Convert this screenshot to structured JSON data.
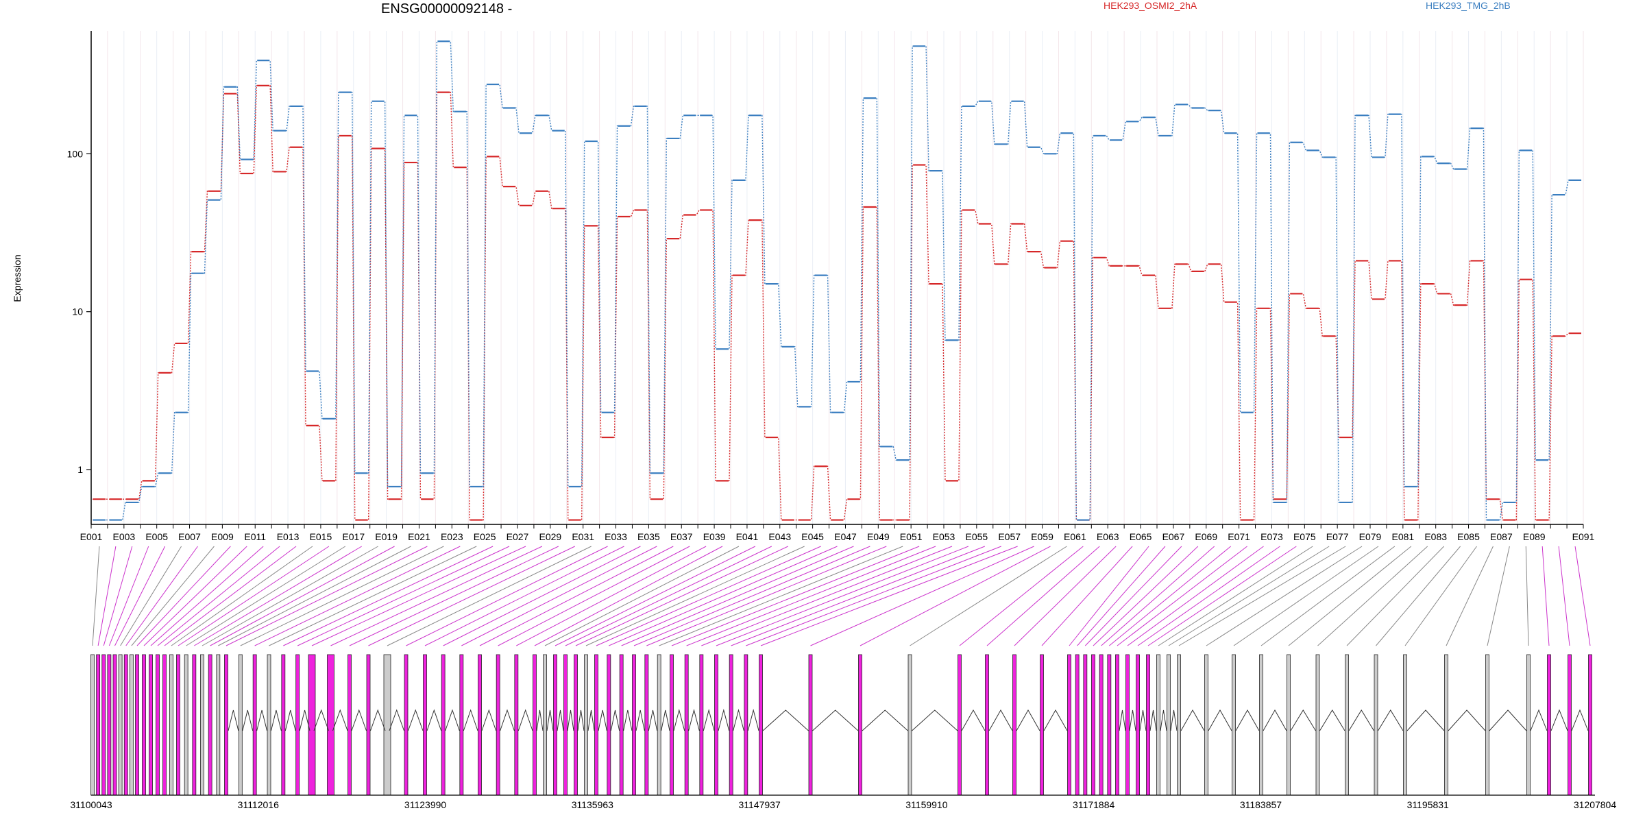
{
  "chart_data": {
    "type": "line",
    "title": "ENSG00000092148 -",
    "xlabel": "",
    "ylabel": "Expression",
    "y_scale": "log",
    "ylim": [
      0.45,
      600
    ],
    "y_ticks": [
      1,
      10,
      100
    ],
    "grid": true,
    "legend_placement": "top-right",
    "categories": [
      "E001",
      "E002",
      "E003",
      "E004",
      "E005",
      "E006",
      "E007",
      "E008",
      "E009",
      "E010",
      "E011",
      "E012",
      "E013",
      "E014",
      "E015",
      "E016",
      "E017",
      "E018",
      "E019",
      "E020",
      "E021",
      "E022",
      "E023",
      "E024",
      "E025",
      "E026",
      "E027",
      "E028",
      "E029",
      "E030",
      "E031",
      "E032",
      "E033",
      "E034",
      "E035",
      "E036",
      "E037",
      "E038",
      "E039",
      "E040",
      "E041",
      "E042",
      "E043",
      "E044",
      "E045",
      "E046",
      "E047",
      "E048",
      "E049",
      "E050",
      "E051",
      "E052",
      "E053",
      "E054",
      "E055",
      "E056",
      "E057",
      "E058",
      "E059",
      "E060",
      "E061",
      "E062",
      "E063",
      "E064",
      "E065",
      "E066",
      "E067",
      "E068",
      "E069",
      "E070",
      "E071",
      "E072",
      "E073",
      "E074",
      "E075",
      "E076",
      "E077",
      "E078",
      "E079",
      "E080",
      "E081",
      "E082",
      "E083",
      "E084",
      "E085",
      "E086",
      "E087",
      "E088",
      "E089",
      "E090",
      "E091"
    ],
    "series": [
      {
        "name": "HEK293_OSMI2_2hA",
        "color": "#d62728",
        "values": [
          0.65,
          0.65,
          0.65,
          0.85,
          4.1,
          6.3,
          24,
          58,
          240,
          75,
          270,
          77,
          110,
          1.9,
          0.85,
          130,
          0.48,
          108,
          0.65,
          88,
          0.65,
          245,
          82,
          0.48,
          96,
          62,
          47,
          58,
          45,
          0.48,
          35,
          1.6,
          40,
          44,
          0.65,
          29,
          41,
          44,
          0.85,
          17,
          38,
          1.6,
          0.48,
          0.48,
          1.05,
          0.48,
          0.65,
          46,
          0.48,
          0.48,
          85,
          15,
          0.85,
          44,
          36,
          20,
          36,
          24,
          19,
          28,
          0.48,
          22,
          19.5,
          19.5,
          17,
          10.5,
          20,
          18,
          20,
          11.5,
          0.48,
          10.5,
          0.65,
          13,
          10.5,
          7,
          1.6,
          21,
          12,
          21,
          0.48,
          15,
          13,
          11,
          21,
          0.65,
          0.48,
          16,
          0.48,
          7,
          7.3
        ]
      },
      {
        "name": "HEK293_TMG_2hB",
        "color": "#3a7ec0",
        "values": [
          0.48,
          0.48,
          0.62,
          0.78,
          0.95,
          2.3,
          17.5,
          51,
          265,
          92,
          390,
          140,
          200,
          4.2,
          2.1,
          245,
          0.95,
          215,
          0.78,
          175,
          0.95,
          515,
          185,
          0.78,
          275,
          195,
          135,
          175,
          140,
          0.78,
          120,
          2.3,
          150,
          200,
          0.95,
          125,
          175,
          175,
          5.8,
          68,
          175,
          15,
          6,
          2.5,
          17,
          2.3,
          3.6,
          225,
          1.4,
          1.15,
          480,
          78,
          6.6,
          200,
          215,
          115,
          215,
          110,
          100,
          135,
          0.48,
          130,
          122,
          160,
          170,
          130,
          205,
          195,
          188,
          135,
          2.3,
          135,
          0.62,
          118,
          105,
          95,
          0.62,
          175,
          95,
          178,
          0.78,
          96,
          87,
          80,
          145,
          0.48,
          0.62,
          105,
          1.15,
          55,
          68
        ]
      }
    ],
    "xaxis_labels": [
      "E001",
      "E003",
      "E005",
      "E007",
      "E009",
      "E011",
      "E013",
      "E015",
      "E017",
      "E019",
      "E021",
      "E023",
      "E025",
      "E027",
      "E029",
      "E031",
      "E033",
      "E035",
      "E037",
      "E039",
      "E041",
      "E043",
      "E045",
      "E047",
      "E049",
      "E051",
      "E053",
      "E055",
      "E057",
      "E059",
      "E061",
      "E063",
      "E065",
      "E067",
      "E069",
      "E071",
      "E073",
      "E075",
      "E077",
      "E079",
      "E081",
      "E083",
      "E085",
      "E087",
      "E089",
      "E091"
    ],
    "genomic_ticks": [
      "31100043",
      "31112016",
      "31123990",
      "31135963",
      "31147937",
      "31159910",
      "31171884",
      "31183857",
      "31195831",
      "31207804"
    ],
    "colors": {
      "significant": "#cc33cc",
      "not_significant": "#888888",
      "exon_fill_sig": "#ee22dd",
      "exon_fill": "#cccccc"
    }
  }
}
